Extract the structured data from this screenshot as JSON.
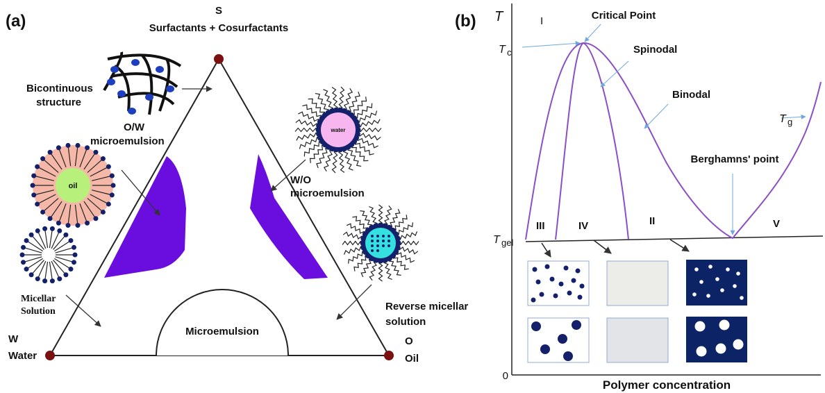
{
  "panel_a": {
    "label": "(a)",
    "vertices": {
      "s_symbol": "S",
      "s_name": "Surfactants + Cosurfactants",
      "w_symbol": "W",
      "w_name": "Water",
      "o_symbol": "O",
      "o_name": "Oil"
    },
    "labels": {
      "bicontinuous": [
        "Bicontinuous",
        "structure"
      ],
      "ow": [
        "O/W",
        "microemulsion"
      ],
      "wo": [
        "W/O",
        "microemulsion"
      ],
      "micellar": [
        "Micellar",
        "Solution"
      ],
      "reverse": [
        "Reverse micellar",
        "solution"
      ],
      "microemulsion": "Microemulsion",
      "oil_core": "oil",
      "water_core": "water"
    }
  },
  "panel_b": {
    "label": "(b)",
    "y_axis": "T",
    "origin": "0",
    "x_axis": "Polymer concentration",
    "labels": {
      "region_i": "I",
      "critical_point": "Critical Point",
      "tc_main": "T",
      "tc_sub": "c",
      "spinodal": "Spinodal",
      "binodal": "Binodal",
      "tg_main": "T",
      "tg_sub": "g",
      "berghamns": "Berghamns' point",
      "tgel_main": "T",
      "tgel_sub": "gel",
      "region_iii": "III",
      "region_iv": "IV",
      "region_ii": "II",
      "region_v": "V"
    }
  }
}
